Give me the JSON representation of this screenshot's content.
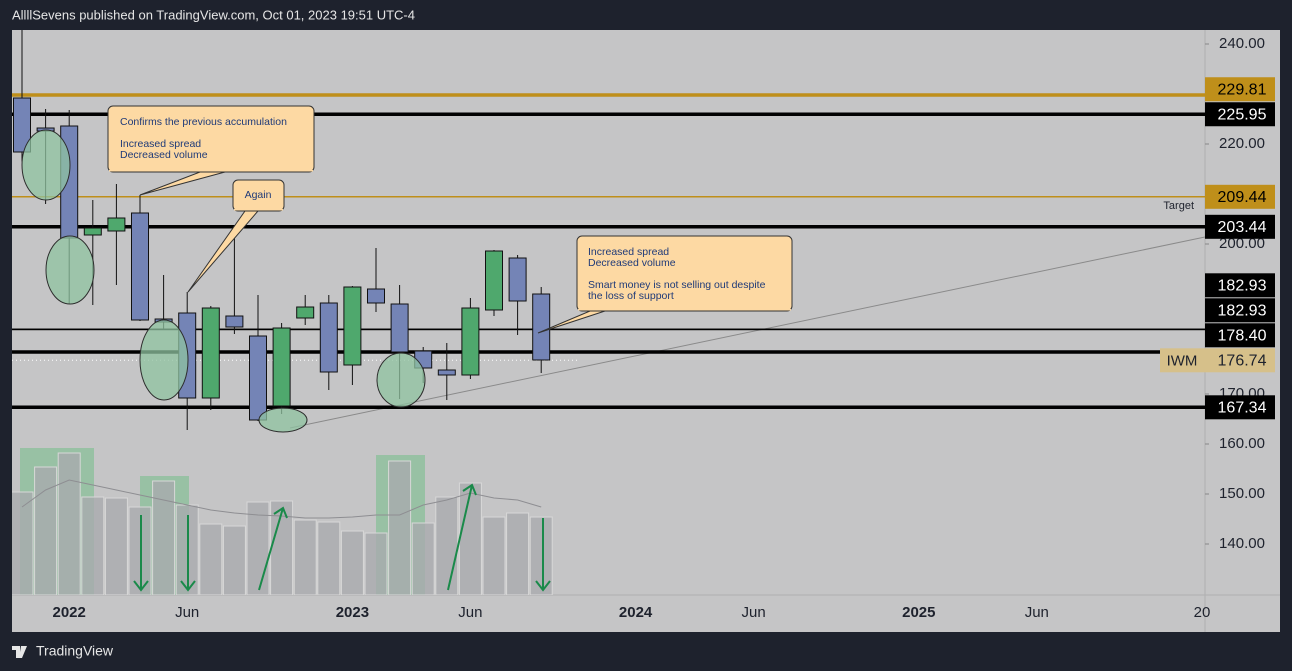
{
  "header": "AllllSevens published on TradingView.com, Oct 01, 2023 19:51 UTC-4",
  "footer": "TradingView",
  "chart_data": {
    "type": "candlestick",
    "categories": [
      null,
      null,
      "2022",
      null,
      null,
      null,
      null,
      "Jun",
      null,
      null,
      null,
      null,
      null,
      null,
      "2023",
      null,
      null,
      null,
      null,
      "Jun",
      null,
      null,
      null,
      null,
      null,
      null,
      "2024",
      null,
      null,
      null,
      null,
      "Jun",
      null,
      null,
      null,
      null,
      null,
      null,
      "2025",
      null,
      null,
      null,
      null,
      "Jun",
      null,
      null,
      null,
      null,
      null,
      null,
      "20"
    ],
    "open": [
      229.2,
      223.2,
      223.6,
      201.8,
      202.6,
      206.2,
      185.0,
      186.2,
      169.2,
      185.6,
      181.6,
      167.6,
      185.2,
      188.2,
      175.8,
      191.0,
      188.0,
      178.6,
      174.8,
      173.8,
      186.8,
      197.2,
      190.0,
      null,
      null,
      null,
      null,
      null,
      null,
      null,
      null,
      null,
      null,
      null,
      null,
      null,
      null,
      null,
      null,
      null,
      null,
      null,
      null,
      null,
      null,
      null,
      null,
      null,
      null,
      null,
      null
    ],
    "high": [
      244.5,
      227.0,
      226.8,
      208.8,
      212.0,
      209.8,
      193.8,
      190.4,
      187.6,
      201.8,
      189.8,
      184.2,
      189.8,
      189.8,
      191.6,
      199.2,
      191.8,
      179.4,
      180.2,
      189.2,
      198.8,
      197.8,
      191.4,
      null,
      null,
      null,
      null,
      null,
      null,
      null,
      null,
      null,
      null,
      null,
      null,
      null,
      null,
      null,
      null,
      null,
      null,
      null,
      null,
      null,
      null,
      null,
      null,
      null,
      null,
      null,
      null
    ],
    "low": [
      216.5,
      208.0,
      188.0,
      187.8,
      191.8,
      184.6,
      183.0,
      162.8,
      166.8,
      182.0,
      164.6,
      166.0,
      183.8,
      170.8,
      171.8,
      186.4,
      169.0,
      172.2,
      168.8,
      173.0,
      185.6,
      181.8,
      174.2,
      null,
      null,
      null,
      null,
      null,
      null,
      null,
      null,
      null,
      null,
      null,
      null,
      null,
      null,
      null,
      null,
      null,
      null,
      null,
      null,
      null,
      null,
      null,
      null,
      null,
      null,
      null,
      null
    ],
    "close": [
      218.4,
      222.6,
      201.2,
      203.2,
      205.2,
      184.8,
      184.4,
      169.2,
      187.2,
      183.4,
      164.8,
      183.2,
      187.4,
      174.4,
      191.4,
      188.2,
      178.4,
      175.2,
      173.8,
      187.2,
      198.6,
      188.6,
      176.8,
      null,
      null,
      null,
      null,
      null,
      null,
      null,
      null,
      null,
      null,
      null,
      null,
      null,
      null,
      null,
      null,
      null,
      null,
      null,
      null,
      null,
      null,
      null,
      null,
      null,
      null,
      null,
      null
    ],
    "up_color": "#4fa86d",
    "down_color": "#7484b6",
    "volume": [
      103,
      128,
      142,
      98,
      97,
      88,
      114,
      90,
      71,
      69,
      93,
      94,
      75,
      73,
      64,
      62,
      134,
      72,
      98,
      112,
      78,
      82,
      78,
      null,
      null,
      null,
      null,
      null,
      null,
      null,
      null,
      null,
      null,
      null,
      null,
      null,
      null,
      null,
      null,
      null,
      null,
      null,
      null,
      null,
      null,
      null,
      null,
      null,
      null,
      null,
      null
    ],
    "volume_ma": [
      88,
      105,
      115,
      110,
      105,
      100,
      95,
      90,
      85,
      82,
      80,
      79,
      77,
      77,
      78,
      80,
      80,
      90,
      95,
      102,
      97,
      95,
      88,
      null,
      null,
      null,
      null,
      null,
      null,
      null,
      null,
      null,
      null,
      null,
      null,
      null,
      null,
      null,
      null,
      null,
      null,
      null,
      null,
      null,
      null,
      null,
      null,
      null,
      null,
      null,
      null
    ],
    "volume_color": "#a9aaae",
    "volume_ma_color": "#8e8e92",
    "volume_lim": [
      0,
      150
    ],
    "ylim": [
      129.8,
      242.8
    ],
    "yticks": [
      {
        "value": 240,
        "label": "240.00"
      },
      {
        "value": 220,
        "label": "220.00"
      },
      {
        "value": 200,
        "label": "200.00"
      },
      {
        "value": 170,
        "label": "170.00"
      },
      {
        "value": 160,
        "label": "160.00"
      },
      {
        "value": 150,
        "label": "150.00"
      },
      {
        "value": 140,
        "label": "140.00"
      }
    ],
    "levels": [
      {
        "value": 229.81,
        "color": "#bf8f1a",
        "thick": true
      },
      {
        "value": 225.95,
        "color": "#000000",
        "thick": true
      },
      {
        "value": 209.44,
        "color": "#bf8f1a",
        "thick": false
      },
      {
        "value": 203.44,
        "color": "#000000",
        "thick": true
      },
      {
        "value": 182.93,
        "color": "#000000",
        "thick": false
      },
      {
        "value": 182.93,
        "color": "#000000",
        "thick": false
      },
      {
        "value": {
          "value": 178.4,
          "label": "178.40"
        },
        "color": "#000000",
        "thick": true
      },
      {
        "value": 167.34,
        "color": "#000000",
        "thick": true
      }
    ],
    "last_price": {
      "symbol": "IWM",
      "value": 176.74,
      "color": "#d6c08a"
    },
    "target_label": "Target",
    "annotations": [
      {
        "paragraphs": [
          [
            "Confirms the previous accumulation"
          ],
          [
            "Increased spread",
            "Decreased volume"
          ]
        ]
      },
      {
        "paragraphs": [
          [
            "Again"
          ]
        ]
      },
      {
        "paragraphs": [
          [
            "Increased spread",
            "Decreased volume"
          ],
          [
            "Smart money is not selling out despite",
            "the loss of support"
          ]
        ]
      }
    ]
  }
}
